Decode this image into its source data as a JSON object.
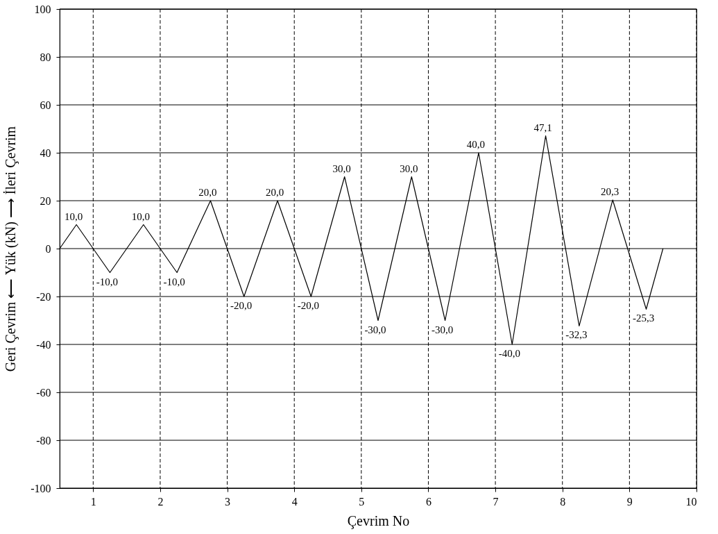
{
  "chart_data": {
    "type": "line",
    "xlabel": "Çevrim No",
    "ylabel": "Geri Çevrim ⟵ Yük (kN) ⟶ İleri Çevrim",
    "x": [
      0.5,
      0.75,
      1.25,
      1.75,
      2.25,
      2.75,
      3.25,
      3.75,
      4.25,
      4.75,
      5.25,
      5.75,
      6.25,
      6.75,
      7.25,
      7.75,
      8.25,
      8.75,
      9.25,
      9.5
    ],
    "series": [
      {
        "color": "#000000",
        "values": [
          0,
          10,
          -10,
          10,
          -10,
          20,
          -20,
          20,
          -20,
          30,
          -30,
          30,
          -30,
          40,
          -40,
          47.1,
          -32.3,
          20.3,
          -25.3,
          0
        ],
        "value_labels": [
          null,
          "10,0",
          "-10,0",
          "10,0",
          "-10,0",
          "20,0",
          "-20,0",
          "20,0",
          "-20,0",
          "30,0",
          "-30,0",
          "30,0",
          "-30,0",
          "40,0",
          "-40,0",
          "47,1",
          "-32,3",
          "20,3",
          "-25,3",
          null
        ]
      }
    ],
    "xlim": [
      0.5,
      10
    ],
    "xticks": [
      1,
      2,
      3,
      4,
      5,
      6,
      7,
      8,
      9,
      10
    ],
    "ylim": [
      -100,
      100
    ],
    "yticks": [
      -100,
      -80,
      -60,
      -40,
      -20,
      0,
      20,
      40,
      60,
      80,
      100
    ],
    "grid": true,
    "line_style": "solid",
    "marker": "none"
  }
}
